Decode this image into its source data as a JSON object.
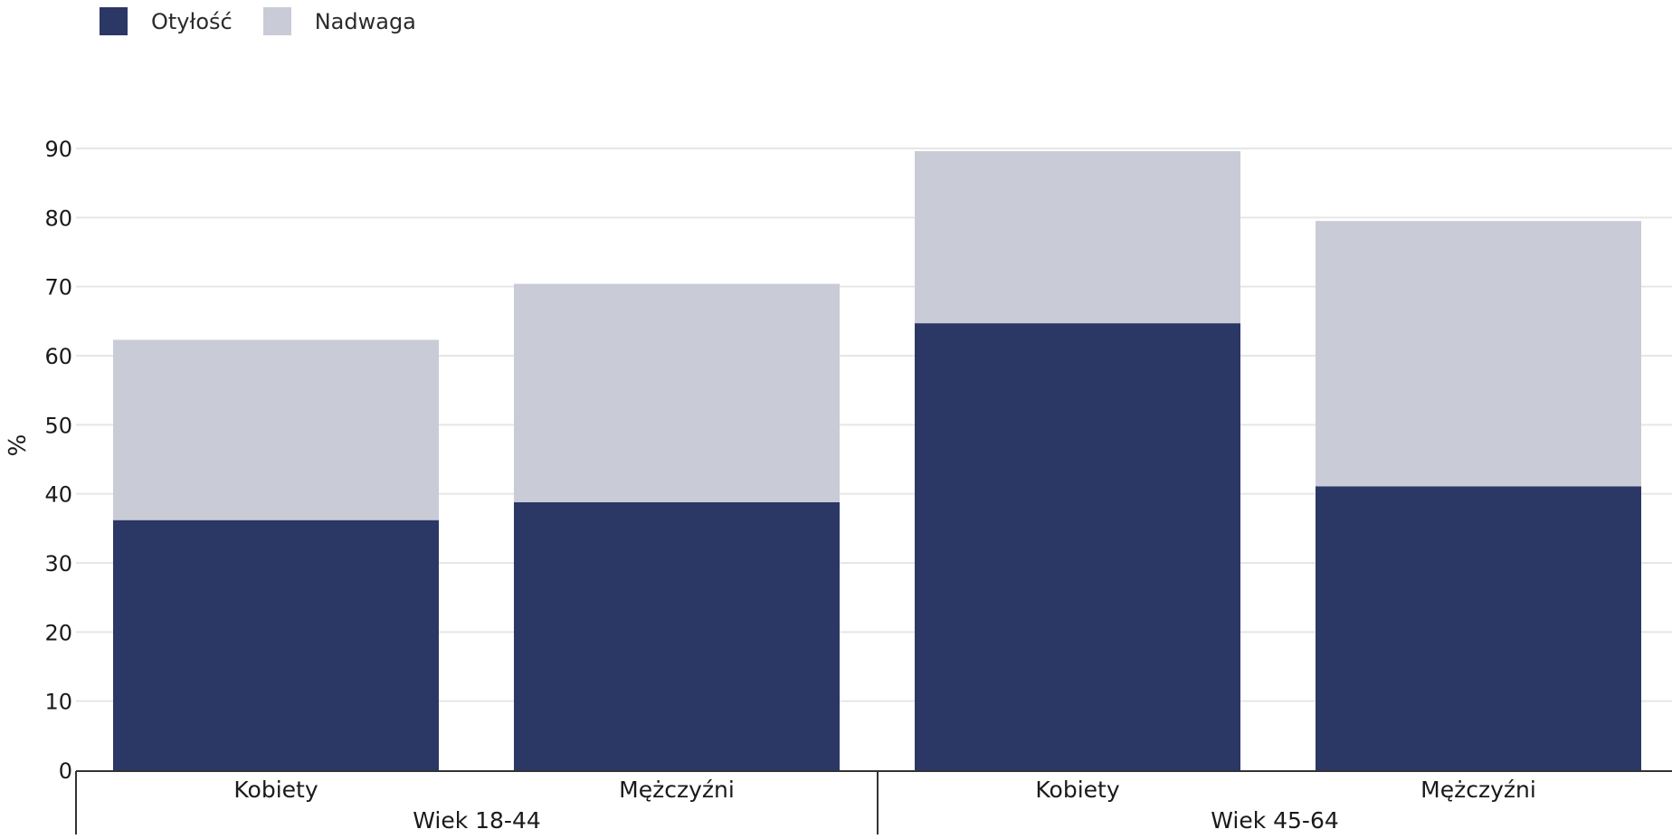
{
  "legend": [
    {
      "label": "Otyłość",
      "color": "#2b3765"
    },
    {
      "label": "Nadwaga",
      "color": "#c9cbd7"
    }
  ],
  "chart_data": {
    "type": "bar",
    "stacked": true,
    "ylabel": "%",
    "xlabel": "",
    "ylim": [
      0,
      90
    ],
    "yticks": [
      0,
      10,
      20,
      30,
      40,
      50,
      60,
      70,
      80,
      90
    ],
    "grid": true,
    "legend_position": "top-left",
    "groups": [
      {
        "label": "Wiek 18-44",
        "categories": [
          "Kobiety",
          "Mężczyźni"
        ]
      },
      {
        "label": "Wiek 45-64",
        "categories": [
          "Kobiety",
          "Mężczyźni"
        ]
      }
    ],
    "series": [
      {
        "name": "Otyłość",
        "color": "#2b3765",
        "values": [
          36.2,
          38.8,
          64.7,
          41.1
        ]
      },
      {
        "name": "Nadwaga",
        "color": "#c9cbd7",
        "values": [
          26.1,
          31.6,
          24.9,
          38.4
        ]
      }
    ]
  }
}
